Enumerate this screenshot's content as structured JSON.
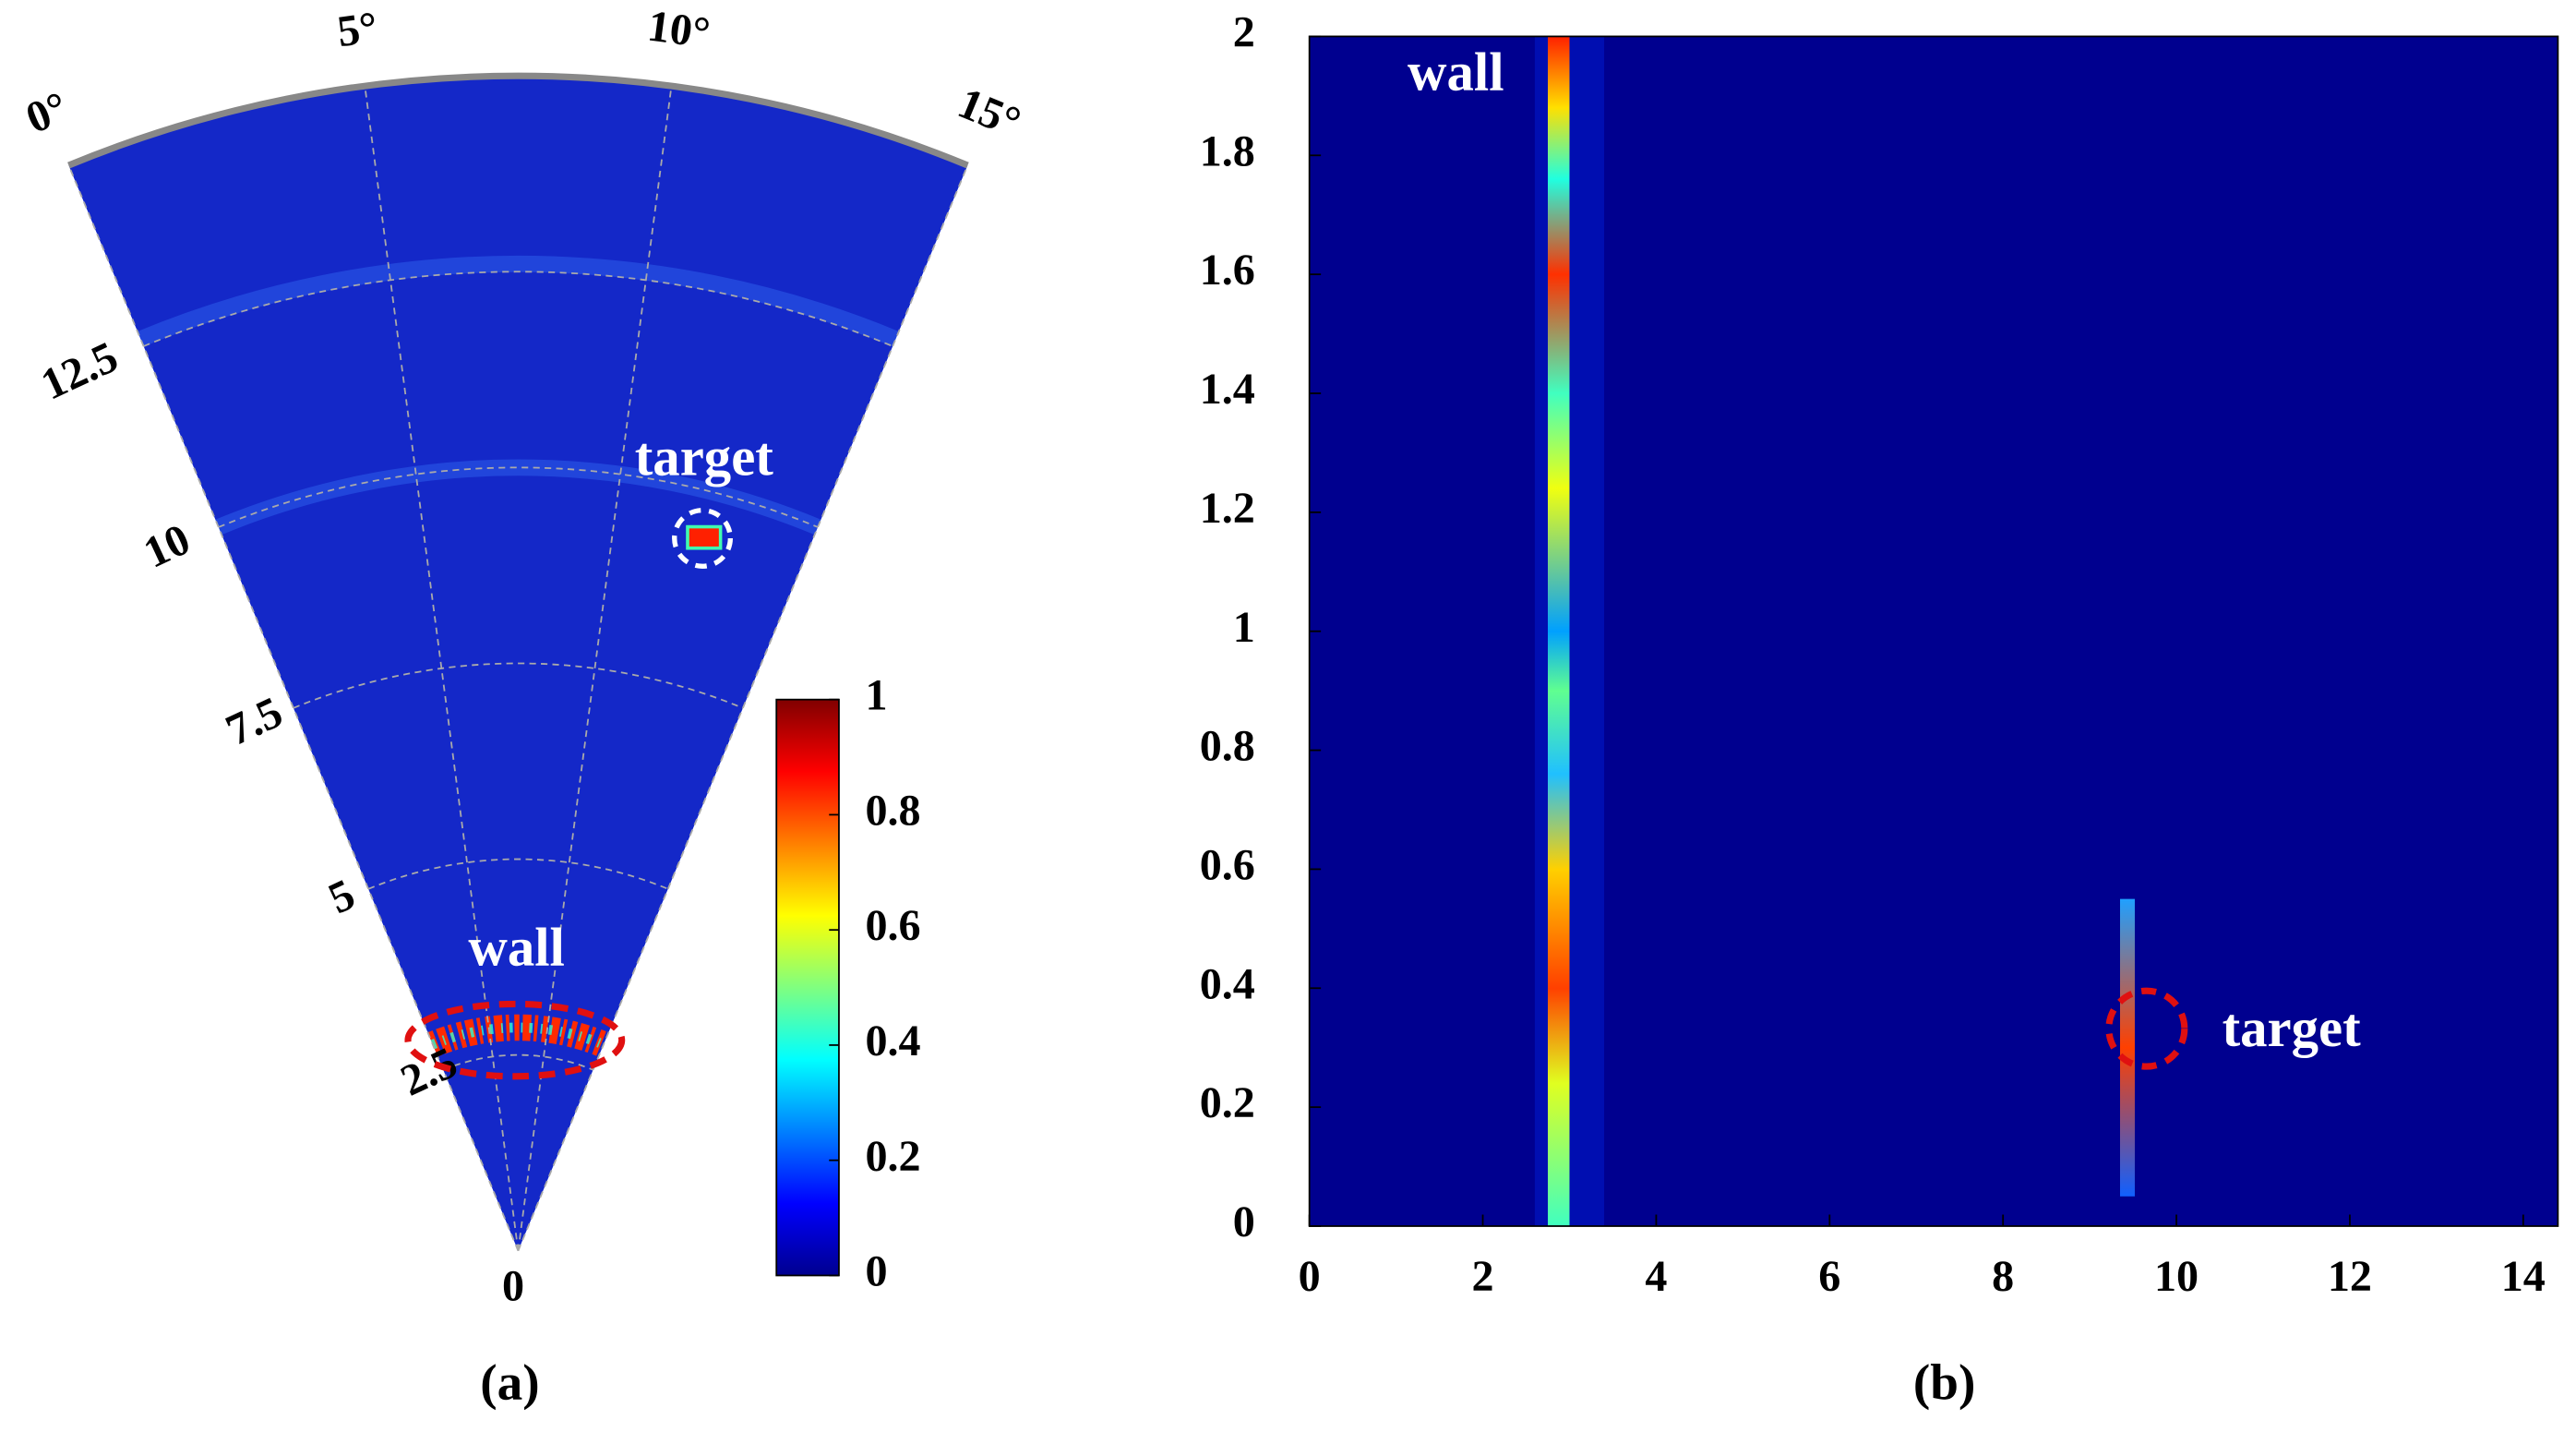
{
  "chart_data": [
    {
      "type": "polar-heatmap",
      "caption": "(a)",
      "thetalim": [
        0,
        15
      ],
      "thetaticks": [
        {
          "value": 0,
          "label": "0°"
        },
        {
          "value": 5,
          "label": "5°"
        },
        {
          "value": 10,
          "label": "10°"
        },
        {
          "value": 15,
          "label": "15°"
        }
      ],
      "rlim": [
        0,
        15
      ],
      "rticks": [
        0,
        2.5,
        5,
        7.5,
        10,
        12.5
      ],
      "grid": true,
      "colorbar": {
        "colormap": "jet",
        "clim": [
          0,
          1
        ],
        "ticks": [
          0,
          0.2,
          0.4,
          0.6,
          0.8,
          1
        ]
      },
      "annotations": [
        "wall",
        "target"
      ]
    },
    {
      "type": "heatmap",
      "caption": "(b)",
      "colormap": "jet",
      "xlim": [
        0,
        14.4
      ],
      "xticks": [
        0,
        2,
        4,
        6,
        8,
        10,
        12,
        14
      ],
      "ylim": [
        0,
        2
      ],
      "yticks": [
        0,
        0.2,
        0.4,
        0.6,
        0.8,
        1,
        1.2,
        1.4,
        1.6,
        1.8,
        2
      ],
      "annotations": [
        "wall",
        "target"
      ]
    }
  ]
}
